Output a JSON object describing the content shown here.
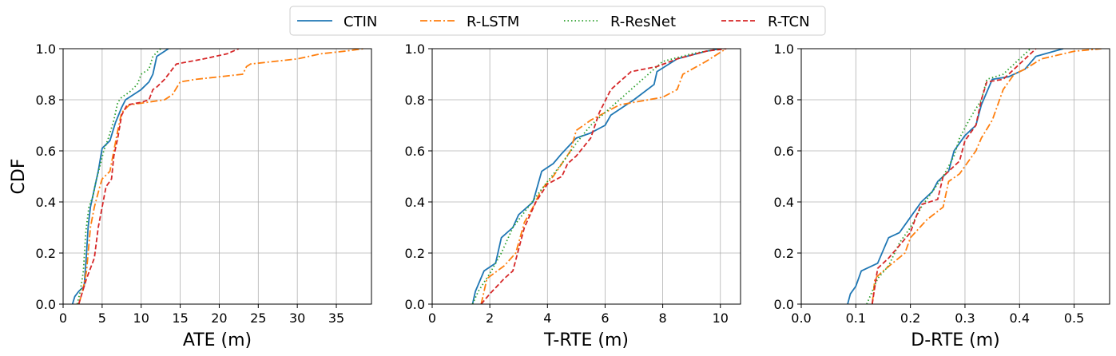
{
  "legend": {
    "placement": "top-center",
    "entries": [
      {
        "name": "CTIN",
        "color": "#1f77b4",
        "dash": "solid"
      },
      {
        "name": "R-LSTM",
        "color": "#ff7f0e",
        "dash": "dashdot"
      },
      {
        "name": "R-ResNet",
        "color": "#2ca02c",
        "dash": "dotted"
      },
      {
        "name": "R-TCN",
        "color": "#d62728",
        "dash": "dashed"
      }
    ]
  },
  "chart_data": [
    {
      "type": "line",
      "xlabel": "ATE (m)",
      "ylabel": "CDF",
      "xlim": [
        0,
        39.5
      ],
      "ylim": [
        0,
        1
      ],
      "xticks": [
        0,
        5,
        10,
        15,
        20,
        25,
        30,
        35
      ],
      "xtick_labels": [
        "0",
        "5",
        "10",
        "15",
        "20",
        "25",
        "30",
        "35"
      ],
      "yticks": [
        0,
        0.2,
        0.4,
        0.6,
        0.8,
        1.0
      ],
      "ytick_labels": [
        "0.0",
        "0.2",
        "0.4",
        "0.6",
        "0.8",
        "1.0"
      ],
      "grid": true,
      "series": [
        {
          "name": "CTIN",
          "points": [
            [
              1.2,
              0
            ],
            [
              1.5,
              0.03
            ],
            [
              2.0,
              0.05
            ],
            [
              2.7,
              0.07
            ],
            [
              3.0,
              0.2
            ],
            [
              3.2,
              0.3
            ],
            [
              3.5,
              0.38
            ],
            [
              4.0,
              0.45
            ],
            [
              4.5,
              0.52
            ],
            [
              5.0,
              0.61
            ],
            [
              6.0,
              0.64
            ],
            [
              6.7,
              0.71
            ],
            [
              7.5,
              0.77
            ],
            [
              8.0,
              0.8
            ],
            [
              9.0,
              0.82
            ],
            [
              10.0,
              0.84
            ],
            [
              11.0,
              0.87
            ],
            [
              11.5,
              0.9
            ],
            [
              12.0,
              0.97
            ],
            [
              13.5,
              1.0
            ]
          ]
        },
        {
          "name": "R-LSTM",
          "points": [
            [
              2.0,
              0
            ],
            [
              2.5,
              0.05
            ],
            [
              3.0,
              0.13
            ],
            [
              3.5,
              0.3
            ],
            [
              4.0,
              0.38
            ],
            [
              4.7,
              0.46
            ],
            [
              5.0,
              0.49
            ],
            [
              6.0,
              0.52
            ],
            [
              6.5,
              0.6
            ],
            [
              7.0,
              0.68
            ],
            [
              7.5,
              0.75
            ],
            [
              8.5,
              0.78
            ],
            [
              13.0,
              0.8
            ],
            [
              14.0,
              0.82
            ],
            [
              15.0,
              0.87
            ],
            [
              17.0,
              0.88
            ],
            [
              20.0,
              0.89
            ],
            [
              23.0,
              0.9
            ],
            [
              23.5,
              0.93
            ],
            [
              24.0,
              0.94
            ],
            [
              27.0,
              0.95
            ],
            [
              30.0,
              0.96
            ],
            [
              33.0,
              0.98
            ],
            [
              36.0,
              0.99
            ],
            [
              38.5,
              1.0
            ]
          ]
        },
        {
          "name": "R-ResNet",
          "points": [
            [
              1.8,
              0
            ],
            [
              2.2,
              0.05
            ],
            [
              2.6,
              0.13
            ],
            [
              2.9,
              0.28
            ],
            [
              3.3,
              0.38
            ],
            [
              3.8,
              0.42
            ],
            [
              4.2,
              0.48
            ],
            [
              4.8,
              0.55
            ],
            [
              5.2,
              0.6
            ],
            [
              5.8,
              0.65
            ],
            [
              6.5,
              0.72
            ],
            [
              7.0,
              0.79
            ],
            [
              7.5,
              0.81
            ],
            [
              8.5,
              0.83
            ],
            [
              9.5,
              0.86
            ],
            [
              10.0,
              0.9
            ],
            [
              11.0,
              0.92
            ],
            [
              11.5,
              0.97
            ],
            [
              12.5,
              1.0
            ]
          ]
        },
        {
          "name": "R-TCN",
          "points": [
            [
              2.0,
              0
            ],
            [
              2.5,
              0.05
            ],
            [
              3.0,
              0.1
            ],
            [
              4.0,
              0.18
            ],
            [
              4.5,
              0.3
            ],
            [
              5.0,
              0.38
            ],
            [
              5.5,
              0.46
            ],
            [
              6.2,
              0.49
            ],
            [
              6.5,
              0.58
            ],
            [
              7.0,
              0.65
            ],
            [
              7.5,
              0.74
            ],
            [
              8.2,
              0.78
            ],
            [
              10.0,
              0.79
            ],
            [
              11.0,
              0.8
            ],
            [
              11.5,
              0.84
            ],
            [
              12.0,
              0.85
            ],
            [
              13.0,
              0.88
            ],
            [
              14.5,
              0.94
            ],
            [
              18.0,
              0.96
            ],
            [
              21.0,
              0.98
            ],
            [
              22.5,
              1.0
            ]
          ]
        }
      ]
    },
    {
      "type": "line",
      "xlabel": "T-RTE (m)",
      "ylabel": "",
      "xlim": [
        0,
        10.7
      ],
      "ylim": [
        0,
        1
      ],
      "xticks": [
        0,
        2,
        4,
        6,
        8,
        10
      ],
      "xtick_labels": [
        "0",
        "2",
        "4",
        "6",
        "8",
        "10"
      ],
      "yticks": [
        0,
        0.2,
        0.4,
        0.6,
        0.8,
        1.0
      ],
      "ytick_labels": [
        "0.0",
        "0.2",
        "0.4",
        "0.6",
        "0.8",
        "1.0"
      ],
      "grid": true,
      "series": [
        {
          "name": "CTIN",
          "points": [
            [
              1.4,
              0
            ],
            [
              1.5,
              0.05
            ],
            [
              1.8,
              0.13
            ],
            [
              2.2,
              0.16
            ],
            [
              2.4,
              0.26
            ],
            [
              2.8,
              0.3
            ],
            [
              3.0,
              0.35
            ],
            [
              3.5,
              0.4
            ],
            [
              3.8,
              0.52
            ],
            [
              4.2,
              0.55
            ],
            [
              4.5,
              0.59
            ],
            [
              5.0,
              0.65
            ],
            [
              5.5,
              0.67
            ],
            [
              6.0,
              0.7
            ],
            [
              6.2,
              0.74
            ],
            [
              7.0,
              0.8
            ],
            [
              7.7,
              0.86
            ],
            [
              7.8,
              0.91
            ],
            [
              8.5,
              0.96
            ],
            [
              9.5,
              0.99
            ],
            [
              10.0,
              1.0
            ]
          ]
        },
        {
          "name": "R-LSTM",
          "points": [
            [
              1.7,
              0
            ],
            [
              1.9,
              0.1
            ],
            [
              2.5,
              0.15
            ],
            [
              2.9,
              0.2
            ],
            [
              3.2,
              0.32
            ],
            [
              3.5,
              0.38
            ],
            [
              3.8,
              0.45
            ],
            [
              4.2,
              0.5
            ],
            [
              4.5,
              0.55
            ],
            [
              4.8,
              0.6
            ],
            [
              5.0,
              0.68
            ],
            [
              5.5,
              0.72
            ],
            [
              6.0,
              0.75
            ],
            [
              6.5,
              0.78
            ],
            [
              8.0,
              0.81
            ],
            [
              8.5,
              0.84
            ],
            [
              8.7,
              0.9
            ],
            [
              9.5,
              0.95
            ],
            [
              10.2,
              1.0
            ]
          ]
        },
        {
          "name": "R-ResNet",
          "points": [
            [
              1.4,
              0
            ],
            [
              1.6,
              0.05
            ],
            [
              2.0,
              0.12
            ],
            [
              2.4,
              0.2
            ],
            [
              2.8,
              0.3
            ],
            [
              3.2,
              0.36
            ],
            [
              3.6,
              0.42
            ],
            [
              4.0,
              0.48
            ],
            [
              4.5,
              0.55
            ],
            [
              5.0,
              0.63
            ],
            [
              5.5,
              0.7
            ],
            [
              6.0,
              0.75
            ],
            [
              6.5,
              0.8
            ],
            [
              7.0,
              0.85
            ],
            [
              7.5,
              0.9
            ],
            [
              8.0,
              0.95
            ],
            [
              9.0,
              0.98
            ],
            [
              10.0,
              1.0
            ]
          ]
        },
        {
          "name": "R-TCN",
          "points": [
            [
              1.7,
              0
            ],
            [
              2.0,
              0.04
            ],
            [
              2.5,
              0.1
            ],
            [
              2.8,
              0.13
            ],
            [
              3.2,
              0.3
            ],
            [
              3.6,
              0.4
            ],
            [
              4.0,
              0.47
            ],
            [
              4.5,
              0.5
            ],
            [
              4.7,
              0.55
            ],
            [
              5.0,
              0.58
            ],
            [
              5.5,
              0.65
            ],
            [
              5.8,
              0.75
            ],
            [
              6.2,
              0.84
            ],
            [
              6.5,
              0.87
            ],
            [
              6.9,
              0.91
            ],
            [
              7.8,
              0.93
            ],
            [
              8.5,
              0.96
            ],
            [
              9.5,
              0.99
            ],
            [
              10.2,
              1.0
            ]
          ]
        }
      ]
    },
    {
      "type": "line",
      "xlabel": "D-RTE (m)",
      "ylabel": "",
      "xlim": [
        0,
        0.565
      ],
      "ylim": [
        0,
        1
      ],
      "xticks": [
        0,
        0.1,
        0.2,
        0.3,
        0.4,
        0.5
      ],
      "xtick_labels": [
        "0.0",
        "0.1",
        "0.2",
        "0.3",
        "0.4",
        "0.5"
      ],
      "yticks": [
        0,
        0.2,
        0.4,
        0.6,
        0.8,
        1.0
      ],
      "ytick_labels": [
        "0.0",
        "0.2",
        "0.4",
        "0.6",
        "0.8",
        "1.0"
      ],
      "grid": true,
      "series": [
        {
          "name": "CTIN",
          "points": [
            [
              0.085,
              0
            ],
            [
              0.09,
              0.04
            ],
            [
              0.1,
              0.07
            ],
            [
              0.11,
              0.13
            ],
            [
              0.14,
              0.16
            ],
            [
              0.16,
              0.26
            ],
            [
              0.18,
              0.28
            ],
            [
              0.2,
              0.34
            ],
            [
              0.22,
              0.4
            ],
            [
              0.24,
              0.44
            ],
            [
              0.25,
              0.48
            ],
            [
              0.27,
              0.52
            ],
            [
              0.28,
              0.6
            ],
            [
              0.3,
              0.66
            ],
            [
              0.32,
              0.7
            ],
            [
              0.33,
              0.78
            ],
            [
              0.35,
              0.88
            ],
            [
              0.38,
              0.89
            ],
            [
              0.41,
              0.92
            ],
            [
              0.43,
              0.97
            ],
            [
              0.48,
              1.0
            ]
          ]
        },
        {
          "name": "R-LSTM",
          "points": [
            [
              0.13,
              0
            ],
            [
              0.135,
              0.1
            ],
            [
              0.15,
              0.13
            ],
            [
              0.19,
              0.2
            ],
            [
              0.2,
              0.26
            ],
            [
              0.23,
              0.33
            ],
            [
              0.26,
              0.38
            ],
            [
              0.27,
              0.48
            ],
            [
              0.29,
              0.51
            ],
            [
              0.3,
              0.54
            ],
            [
              0.32,
              0.6
            ],
            [
              0.33,
              0.65
            ],
            [
              0.35,
              0.72
            ],
            [
              0.36,
              0.78
            ],
            [
              0.37,
              0.84
            ],
            [
              0.39,
              0.9
            ],
            [
              0.41,
              0.92
            ],
            [
              0.44,
              0.96
            ],
            [
              0.5,
              0.99
            ],
            [
              0.55,
              1.0
            ]
          ]
        },
        {
          "name": "R-ResNet",
          "points": [
            [
              0.12,
              0
            ],
            [
              0.13,
              0.05
            ],
            [
              0.14,
              0.1
            ],
            [
              0.16,
              0.15
            ],
            [
              0.18,
              0.24
            ],
            [
              0.2,
              0.3
            ],
            [
              0.22,
              0.38
            ],
            [
              0.24,
              0.44
            ],
            [
              0.26,
              0.5
            ],
            [
              0.28,
              0.58
            ],
            [
              0.29,
              0.65
            ],
            [
              0.31,
              0.73
            ],
            [
              0.33,
              0.8
            ],
            [
              0.34,
              0.88
            ],
            [
              0.37,
              0.9
            ],
            [
              0.39,
              0.94
            ],
            [
              0.41,
              0.98
            ],
            [
              0.42,
              1.0
            ]
          ]
        },
        {
          "name": "R-TCN",
          "points": [
            [
              0.13,
              0
            ],
            [
              0.135,
              0.07
            ],
            [
              0.14,
              0.14
            ],
            [
              0.16,
              0.18
            ],
            [
              0.18,
              0.23
            ],
            [
              0.2,
              0.28
            ],
            [
              0.21,
              0.34
            ],
            [
              0.22,
              0.39
            ],
            [
              0.25,
              0.41
            ],
            [
              0.26,
              0.5
            ],
            [
              0.27,
              0.52
            ],
            [
              0.29,
              0.56
            ],
            [
              0.3,
              0.64
            ],
            [
              0.32,
              0.7
            ],
            [
              0.33,
              0.8
            ],
            [
              0.34,
              0.87
            ],
            [
              0.37,
              0.88
            ],
            [
              0.39,
              0.92
            ],
            [
              0.41,
              0.96
            ],
            [
              0.43,
              1.0
            ]
          ]
        }
      ]
    }
  ]
}
